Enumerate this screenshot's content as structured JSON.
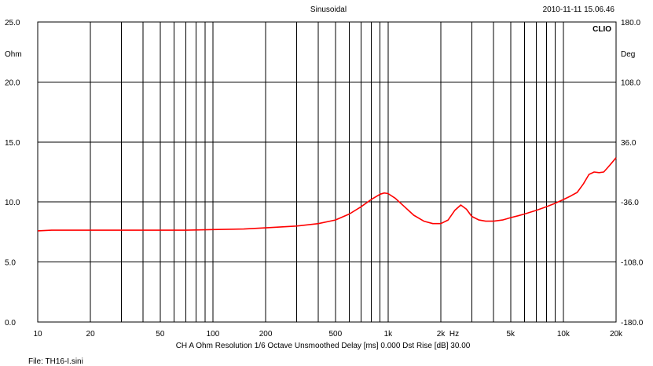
{
  "header": {
    "mode": "Sinusoidal",
    "datetime": "2010-11-11 15.06.46",
    "brand": "CLIO"
  },
  "footer": {
    "settings": "CH A   Ohm   Resolution 1/6 Octave   Unsmoothed   Delay [ms] 0.000    Dst Rise [dB] 30.00",
    "file": "File: TH16-I.sini"
  },
  "chart_data": {
    "type": "line",
    "xscale": "log",
    "xlim": [
      10,
      20000
    ],
    "xticks": [
      10,
      20,
      50,
      100,
      200,
      500,
      1000,
      2000,
      5000,
      10000,
      20000
    ],
    "xtick_labels": [
      "10",
      "20",
      "50",
      "100",
      "200",
      "500",
      "1k",
      "2k",
      "5k",
      "10k",
      "20k"
    ],
    "x_unit_label": "Hz",
    "ylim": [
      0,
      25
    ],
    "yticks": [
      0,
      5,
      10,
      15,
      20,
      25
    ],
    "ytick_labels": [
      "0.0",
      "5.0",
      "10.0",
      "15.0",
      "20.0",
      "25.0"
    ],
    "ylabel": "Ohm",
    "y2lim": [
      -180,
      180
    ],
    "y2ticks": [
      -180,
      -108,
      -36,
      36,
      108,
      180
    ],
    "y2tick_labels": [
      "-180.0",
      "-108.0",
      "-36.0",
      "36.0",
      "108.0",
      "180.0"
    ],
    "y2label": "Deg",
    "grid": true,
    "series": [
      {
        "color": "#ff0000",
        "x": [
          10,
          12,
          15,
          20,
          30,
          50,
          70,
          100,
          150,
          200,
          300,
          400,
          500,
          600,
          700,
          800,
          900,
          950,
          1000,
          1100,
          1200,
          1400,
          1600,
          1800,
          2000,
          2200,
          2400,
          2600,
          2800,
          3000,
          3300,
          3600,
          4000,
          4500,
          5000,
          5500,
          6000,
          7000,
          8000,
          9000,
          10000,
          11000,
          12000,
          13000,
          14000,
          15000,
          16000,
          17000,
          18000,
          19000,
          20000
        ],
        "y": [
          7.6,
          7.65,
          7.65,
          7.65,
          7.65,
          7.65,
          7.65,
          7.7,
          7.75,
          7.85,
          8.0,
          8.2,
          8.5,
          9.0,
          9.6,
          10.2,
          10.65,
          10.75,
          10.7,
          10.3,
          9.8,
          8.9,
          8.4,
          8.2,
          8.2,
          8.5,
          9.3,
          9.75,
          9.4,
          8.8,
          8.5,
          8.4,
          8.4,
          8.5,
          8.7,
          8.85,
          9.0,
          9.3,
          9.6,
          9.9,
          10.2,
          10.5,
          10.8,
          11.5,
          12.3,
          12.5,
          12.45,
          12.5,
          12.9,
          13.3,
          13.7
        ]
      }
    ]
  }
}
